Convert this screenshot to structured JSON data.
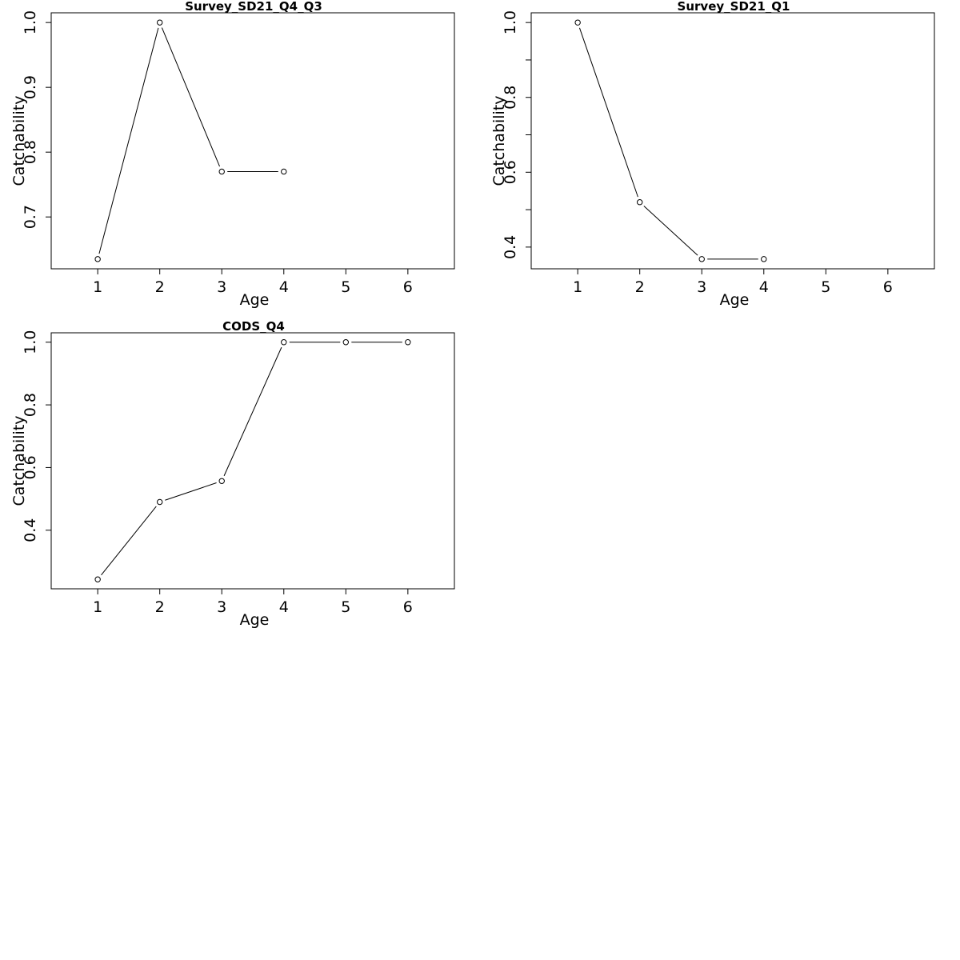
{
  "chart_data": [
    {
      "type": "line",
      "title": "Survey_SD21_Q4_Q3",
      "xlabel": "Age",
      "ylabel": "Catchability",
      "x": [
        1,
        2,
        3,
        4
      ],
      "y": [
        0.635,
        1.0,
        0.77,
        0.77
      ],
      "xlim": [
        0.25,
        6.75
      ],
      "ylim": [
        0.62,
        1.015
      ],
      "xticks": [
        "1",
        "2",
        "3",
        "4",
        "5",
        "6"
      ],
      "yticks": [
        "0.7",
        "0.8",
        "0.9",
        "1.0"
      ],
      "ytick_values": [
        0.7,
        0.8,
        0.9,
        1.0
      ],
      "grid": false
    },
    {
      "type": "line",
      "title": "Survey_SD21_Q1",
      "xlabel": "Age",
      "ylabel": "Catchability",
      "x": [
        1,
        2,
        3,
        4
      ],
      "y": [
        1.0,
        0.52,
        0.368,
        0.368
      ],
      "xlim": [
        0.25,
        6.75
      ],
      "ylim": [
        0.342,
        1.026
      ],
      "xticks": [
        "1",
        "2",
        "3",
        "4",
        "5",
        "6"
      ],
      "yticks": [
        "0.4",
        "0.6",
        "0.8",
        "1.0"
      ],
      "ytick_values": [
        0.4,
        0.5,
        0.6,
        0.7,
        0.8,
        0.9,
        1.0
      ],
      "ytick_labeled": [
        true,
        false,
        true,
        false,
        true,
        false,
        true
      ],
      "grid": false
    },
    {
      "type": "line",
      "title": "CODS_Q4",
      "xlabel": "Age",
      "ylabel": "Catchability",
      "x": [
        1,
        2,
        3,
        4,
        5,
        6
      ],
      "y": [
        0.243,
        0.49,
        0.557,
        1.0,
        1.0,
        1.0
      ],
      "xlim": [
        0.25,
        6.75
      ],
      "ylim": [
        0.213,
        1.03
      ],
      "xticks": [
        "1",
        "2",
        "3",
        "4",
        "5",
        "6"
      ],
      "yticks": [
        "0.4",
        "0.6",
        "0.8",
        "1.0"
      ],
      "ytick_values": [
        0.4,
        0.6,
        0.8,
        1.0
      ],
      "grid": false
    }
  ]
}
